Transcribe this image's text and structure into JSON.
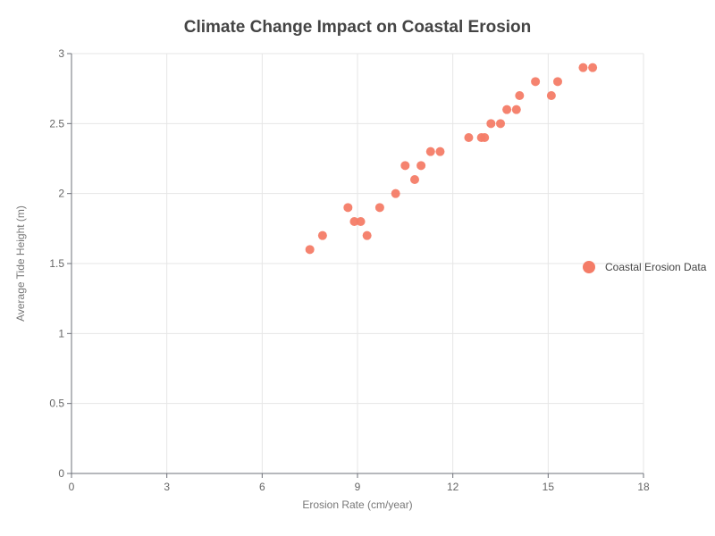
{
  "chart_data": {
    "type": "scatter",
    "title": "Climate Change Impact on Coastal Erosion",
    "xlabel": "Erosion Rate (cm/year)",
    "ylabel": "Average Tide Height (m)",
    "xlim": [
      0,
      18
    ],
    "ylim": [
      0,
      3
    ],
    "xticks": [
      0,
      3,
      6,
      9,
      12,
      15,
      18
    ],
    "yticks": [
      0,
      0.5,
      1,
      1.5,
      2,
      2.5,
      3
    ],
    "xtick_labels": [
      "0",
      "3",
      "6",
      "9",
      "12",
      "15",
      "18"
    ],
    "ytick_labels": [
      "0",
      "0.5",
      "1",
      "1.5",
      "2",
      "2.5",
      "3"
    ],
    "grid": true,
    "legend_position": "right",
    "color": "#f47c67",
    "series": [
      {
        "name": "Coastal Erosion Data",
        "points": [
          [
            7.5,
            1.6
          ],
          [
            7.9,
            1.7
          ],
          [
            8.7,
            1.9
          ],
          [
            8.9,
            1.8
          ],
          [
            9.1,
            1.8
          ],
          [
            9.3,
            1.7
          ],
          [
            9.7,
            1.9
          ],
          [
            10.2,
            2.0
          ],
          [
            10.5,
            2.2
          ],
          [
            10.8,
            2.1
          ],
          [
            11.0,
            2.2
          ],
          [
            11.3,
            2.3
          ],
          [
            11.6,
            2.3
          ],
          [
            12.5,
            2.4
          ],
          [
            12.9,
            2.4
          ],
          [
            13.0,
            2.4
          ],
          [
            13.2,
            2.5
          ],
          [
            13.5,
            2.5
          ],
          [
            13.7,
            2.6
          ],
          [
            14.0,
            2.6
          ],
          [
            14.1,
            2.7
          ],
          [
            14.6,
            2.8
          ],
          [
            15.1,
            2.7
          ],
          [
            15.3,
            2.8
          ],
          [
            16.1,
            2.9
          ],
          [
            16.4,
            2.9
          ]
        ]
      }
    ]
  }
}
